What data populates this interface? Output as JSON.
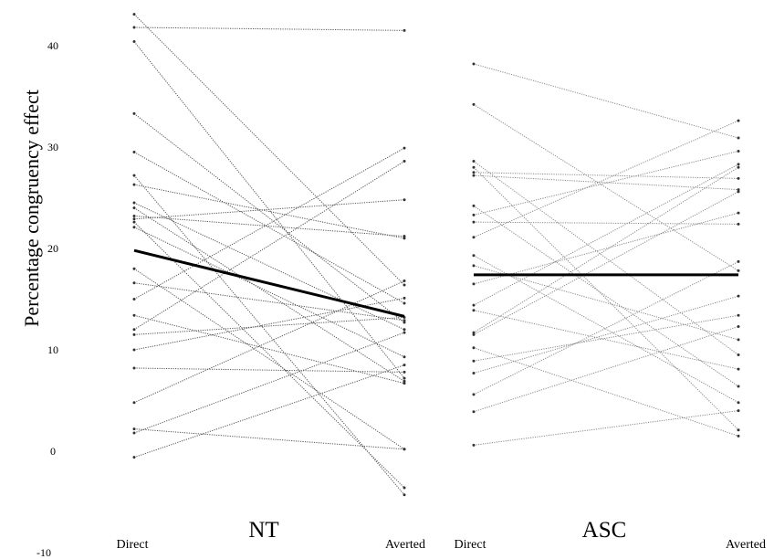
{
  "chart_data": [
    {
      "type": "line",
      "panel": "NT",
      "group_label": "NT",
      "ylabel": "Percentage congruency effect",
      "ylim": [
        -10,
        43
      ],
      "y_ticks": [
        "40",
        "30",
        "20",
        "10",
        "0",
        "-10"
      ],
      "x": [
        "Direct",
        "Averted"
      ],
      "mean": {
        "values": [
          19.8,
          13.3
        ],
        "color": "#000000"
      },
      "series": [
        {
          "values": [
            43.1,
            16.4
          ]
        },
        {
          "values": [
            41.8,
            41.5
          ]
        },
        {
          "values": [
            40.4,
            7.2
          ]
        },
        {
          "values": [
            33.3,
            12.7
          ]
        },
        {
          "values": [
            29.5,
            14.6
          ]
        },
        {
          "values": [
            27.2,
            -4.3
          ]
        },
        {
          "values": [
            26.3,
            21.0
          ]
        },
        {
          "values": [
            24.5,
            12.0
          ]
        },
        {
          "values": [
            24.0,
            6.9
          ]
        },
        {
          "values": [
            23.2,
            21.2
          ]
        },
        {
          "values": [
            22.9,
            24.8
          ]
        },
        {
          "values": [
            22.6,
            -3.6
          ]
        },
        {
          "values": [
            22.1,
            9.3
          ]
        },
        {
          "values": [
            18.0,
            0.2
          ]
        },
        {
          "values": [
            16.6,
            12.9
          ]
        },
        {
          "values": [
            15.0,
            29.9
          ]
        },
        {
          "values": [
            13.4,
            6.7
          ]
        },
        {
          "values": [
            12.0,
            28.6
          ]
        },
        {
          "values": [
            11.5,
            13.2
          ]
        },
        {
          "values": [
            10.0,
            15.1
          ]
        },
        {
          "values": [
            8.2,
            7.8
          ]
        },
        {
          "values": [
            4.8,
            16.8
          ]
        },
        {
          "values": [
            2.2,
            0.2
          ]
        },
        {
          "values": [
            1.8,
            11.7
          ]
        },
        {
          "values": [
            -0.6,
            8.5
          ]
        }
      ]
    },
    {
      "type": "line",
      "panel": "ASC",
      "group_label": "ASC",
      "ylim": [
        -10,
        43
      ],
      "x": [
        "Direct",
        "Averted"
      ],
      "mean": {
        "values": [
          17.4,
          17.4
        ],
        "color": "#000000"
      },
      "series": [
        {
          "values": [
            38.2,
            30.9
          ]
        },
        {
          "values": [
            34.2,
            17.8
          ]
        },
        {
          "values": [
            28.6,
            9.5
          ]
        },
        {
          "values": [
            28.0,
            2.1
          ]
        },
        {
          "values": [
            27.5,
            26.9
          ]
        },
        {
          "values": [
            27.2,
            25.8
          ]
        },
        {
          "values": [
            24.2,
            6.4
          ]
        },
        {
          "values": [
            23.3,
            29.6
          ]
        },
        {
          "values": [
            22.6,
            22.4
          ]
        },
        {
          "values": [
            21.1,
            32.6
          ]
        },
        {
          "values": [
            19.3,
            4.8
          ]
        },
        {
          "values": [
            18.3,
            11.0
          ]
        },
        {
          "values": [
            16.5,
            23.5
          ]
        },
        {
          "values": [
            14.4,
            28.3
          ]
        },
        {
          "values": [
            13.9,
            8.1
          ]
        },
        {
          "values": [
            11.7,
            28.0
          ]
        },
        {
          "values": [
            11.5,
            25.6
          ]
        },
        {
          "values": [
            10.2,
            1.5
          ]
        },
        {
          "values": [
            8.9,
            13.4
          ]
        },
        {
          "values": [
            7.7,
            15.3
          ]
        },
        {
          "values": [
            5.6,
            18.7
          ]
        },
        {
          "values": [
            3.9,
            12.3
          ]
        },
        {
          "values": [
            0.6,
            4.0
          ]
        }
      ]
    }
  ]
}
